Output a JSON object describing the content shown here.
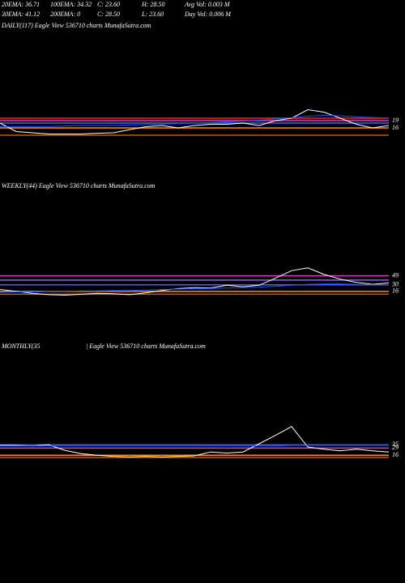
{
  "header": {
    "rows": [
      [
        "20EMA: 36.71",
        "100EMA: 34.32",
        "C: 23.60",
        "H: 28.50",
        "Avg Vol: 0.003  M"
      ],
      [
        "30EMA: 41.12",
        "200EMA: 0",
        "C: 28.50",
        "L: 23.60",
        "Day Vol: 0.006  M"
      ]
    ]
  },
  "chart_data": [
    {
      "type": "line",
      "title": "DAILY(117) Eagle  View  536710  charts MunafaSutra.com",
      "ylim": [
        0,
        60
      ],
      "yticks": [
        19,
        16
      ],
      "series": [
        {
          "color": "#ffffff",
          "values": [
            18,
            14.5,
            14,
            13.5,
            13.5,
            13.5,
            13.8,
            14,
            15.3,
            16.5,
            17,
            16,
            17,
            17.5,
            17.5,
            18,
            17,
            19,
            20,
            23.5,
            22.5,
            20,
            17.5,
            16,
            17
          ]
        },
        {
          "color": "#2050ff",
          "values": [
            16.5,
            16.5,
            16.5,
            16.6,
            16.8,
            17,
            17,
            17,
            17.2,
            17.4,
            17.6,
            17.8,
            18,
            18.2,
            18.5,
            18.8,
            19.2,
            19.7,
            20.2,
            20.8,
            21.2,
            21,
            20.6,
            20.3,
            20
          ]
        }
      ],
      "levels": [
        {
          "value": 20,
          "color": "#ff2020"
        },
        {
          "value": 19,
          "color": "#d040d0"
        },
        {
          "value": 18,
          "color": "#4060ff"
        },
        {
          "value": 16,
          "color": "#ff8c00"
        },
        {
          "value": 13,
          "color": "#c06000"
        }
      ]
    },
    {
      "type": "line",
      "title": "WEEKLY(44) Eagle  View  536710  charts MunafaSutra.com",
      "ylim": [
        -10,
        100
      ],
      "yticks": [
        49,
        30,
        16
      ],
      "series": [
        {
          "color": "#ffffff",
          "values": [
            20,
            16,
            12,
            9,
            8,
            10,
            12,
            11,
            9,
            13,
            18,
            22,
            24,
            23,
            29,
            26,
            29,
            44,
            60,
            66,
            52,
            42,
            35,
            31,
            34
          ]
        },
        {
          "color": "#2050ff",
          "values": [
            14,
            15,
            15,
            16,
            16,
            17,
            17,
            18,
            18,
            19,
            20,
            21,
            22,
            22,
            23,
            24,
            25,
            27,
            29,
            31,
            32,
            32,
            31,
            30,
            30
          ]
        }
      ],
      "levels": [
        {
          "value": 49,
          "color": "#d040d0"
        },
        {
          "value": 40,
          "color": "#9060ff"
        },
        {
          "value": 30,
          "color": "#4060ff"
        },
        {
          "value": 16,
          "color": "#ff8c00"
        },
        {
          "value": 10,
          "color": "#c06000"
        }
      ]
    },
    {
      "type": "line",
      "title": "MONTHLY(35",
      "subtitle": "| Eagle  View  536710  charts MunafaSutra.com",
      "ylim": [
        -10,
        100
      ],
      "yticks": [
        35,
        29,
        16
      ],
      "series": [
        {
          "color": "#ffffff",
          "values": [
            34,
            34,
            33,
            35,
            25,
            19,
            16,
            14,
            13,
            14,
            13,
            14,
            15,
            22,
            20,
            22,
            37,
            52,
            68,
            31,
            27,
            24,
            27,
            24,
            22
          ]
        },
        {
          "color": "#2050ff",
          "values": [
            33,
            33,
            33,
            33,
            33,
            33,
            33,
            33,
            33,
            33,
            33,
            33,
            33,
            33,
            33,
            33,
            33,
            33,
            34,
            34,
            34,
            34,
            34,
            34,
            34
          ]
        }
      ],
      "levels": [
        {
          "value": 35,
          "color": "#4060ff"
        },
        {
          "value": 29,
          "color": "#d040d0"
        },
        {
          "value": 16,
          "color": "#ff8c00"
        },
        {
          "value": 12,
          "color": "#c06000"
        }
      ]
    }
  ]
}
